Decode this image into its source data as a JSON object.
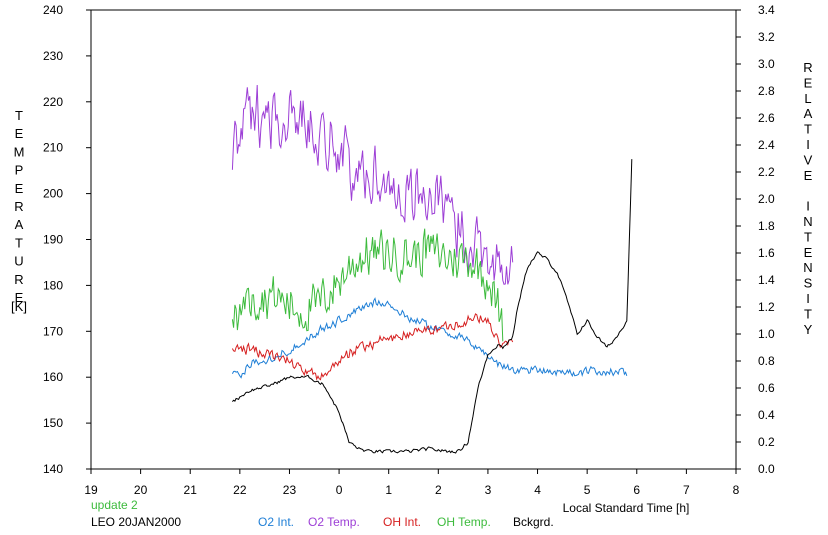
{
  "chart_data": {
    "type": "line",
    "title": "",
    "xlabel": "Local Standard Time [h]",
    "ylabel_left": "TEMPERATURE",
    "ylabel_left_unit": "[K]",
    "ylabel_right": "RELATIVE INTENSITY",
    "x_ticks": [
      "19",
      "20",
      "21",
      "22",
      "23",
      "0",
      "1",
      "2",
      "3",
      "4",
      "5",
      "6",
      "7",
      "8"
    ],
    "xlim": [
      19,
      32
    ],
    "ylim_left": [
      140,
      240
    ],
    "ylim_right": [
      0.0,
      3.4
    ],
    "y_ticks_left": [
      "140",
      "150",
      "160",
      "170",
      "180",
      "190",
      "200",
      "210",
      "220",
      "230",
      "240"
    ],
    "y_ticks_right": [
      "0.0",
      "0.2",
      "0.4",
      "0.6",
      "0.8",
      "1.0",
      "1.2",
      "1.4",
      "1.6",
      "1.8",
      "2.0",
      "2.2",
      "2.4",
      "2.6",
      "2.8",
      "3.0",
      "3.2",
      "3.4"
    ],
    "grid": false,
    "notes": {
      "update": "update 2",
      "station_date": "LEO 20JAN2000"
    },
    "series": [
      {
        "name": "O2 Int.",
        "axis": "right",
        "color": "#1f7fd6",
        "noise": 0.04,
        "x": [
          21.85,
          22.0,
          22.3,
          22.6,
          23.0,
          23.3,
          23.6,
          24.0,
          24.4,
          24.8,
          25.0,
          25.3,
          25.7,
          26.0,
          26.4,
          26.8,
          27.0,
          27.2,
          27.3,
          27.6,
          28.0,
          28.4,
          28.8,
          29.2,
          29.5,
          29.8
        ],
        "y": [
          0.72,
          0.7,
          0.8,
          0.82,
          0.88,
          0.95,
          1.02,
          1.1,
          1.18,
          1.25,
          1.22,
          1.14,
          1.08,
          1.04,
          0.98,
          0.9,
          0.84,
          0.78,
          0.76,
          0.73,
          0.74,
          0.72,
          0.71,
          0.73,
          0.72,
          0.71
        ]
      },
      {
        "name": "O2 Temp.",
        "axis": "left",
        "color": "#9d3fd6",
        "noise": 8,
        "x": [
          21.85,
          22.0,
          22.3,
          22.6,
          23.0,
          23.3,
          23.6,
          24.0,
          24.3,
          24.6,
          25.0,
          25.4,
          25.8,
          26.2,
          26.6,
          27.0,
          27.3,
          27.5
        ],
        "y": [
          208,
          214,
          218,
          217,
          216,
          217,
          213,
          210,
          203,
          205,
          202,
          200,
          200,
          195,
          190,
          188,
          182,
          183
        ]
      },
      {
        "name": "OH Int.",
        "axis": "right",
        "color": "#d62020",
        "noise": 0.05,
        "x": [
          21.85,
          22.0,
          22.3,
          22.6,
          23.0,
          23.3,
          23.6,
          24.0,
          24.4,
          24.8,
          25.2,
          25.6,
          26.0,
          26.4,
          26.8,
          27.0,
          27.2,
          27.3,
          27.5
        ],
        "y": [
          0.88,
          0.9,
          0.88,
          0.85,
          0.8,
          0.72,
          0.68,
          0.8,
          0.9,
          0.95,
          0.98,
          1.02,
          1.04,
          1.08,
          1.12,
          1.1,
          0.95,
          0.9,
          0.95
        ]
      },
      {
        "name": "OH Temp.",
        "axis": "left",
        "color": "#3dbb3d",
        "noise": 6,
        "x": [
          21.85,
          22.0,
          22.3,
          22.6,
          23.0,
          23.3,
          23.6,
          24.0,
          24.3,
          24.6,
          25.0,
          25.4,
          25.8,
          26.2,
          26.6,
          27.0,
          27.2,
          27.3
        ],
        "y": [
          173,
          175,
          177,
          178,
          176,
          174,
          176,
          181,
          185,
          187,
          187,
          186,
          188,
          186,
          186,
          182,
          175,
          170
        ]
      },
      {
        "name": "Bckgrd.",
        "axis": "right",
        "color": "#000000",
        "noise": 0.015,
        "x": [
          21.85,
          22.2,
          22.6,
          23.0,
          23.4,
          23.7,
          24.0,
          24.2,
          24.4,
          24.6,
          25.0,
          25.4,
          25.8,
          26.2,
          26.4,
          26.6,
          26.8,
          27.0,
          27.2,
          27.3,
          27.5,
          27.6,
          27.8,
          28.0,
          28.2,
          28.4,
          28.6,
          28.8,
          29.0,
          29.2,
          29.4,
          29.6,
          29.8,
          29.9
        ],
        "y": [
          0.5,
          0.58,
          0.62,
          0.68,
          0.68,
          0.62,
          0.42,
          0.2,
          0.15,
          0.13,
          0.13,
          0.13,
          0.15,
          0.13,
          0.13,
          0.2,
          0.6,
          0.85,
          0.92,
          0.9,
          0.98,
          1.2,
          1.5,
          1.6,
          1.55,
          1.45,
          1.25,
          1.0,
          1.1,
          0.98,
          0.9,
          0.98,
          1.1,
          2.3
        ]
      }
    ]
  }
}
